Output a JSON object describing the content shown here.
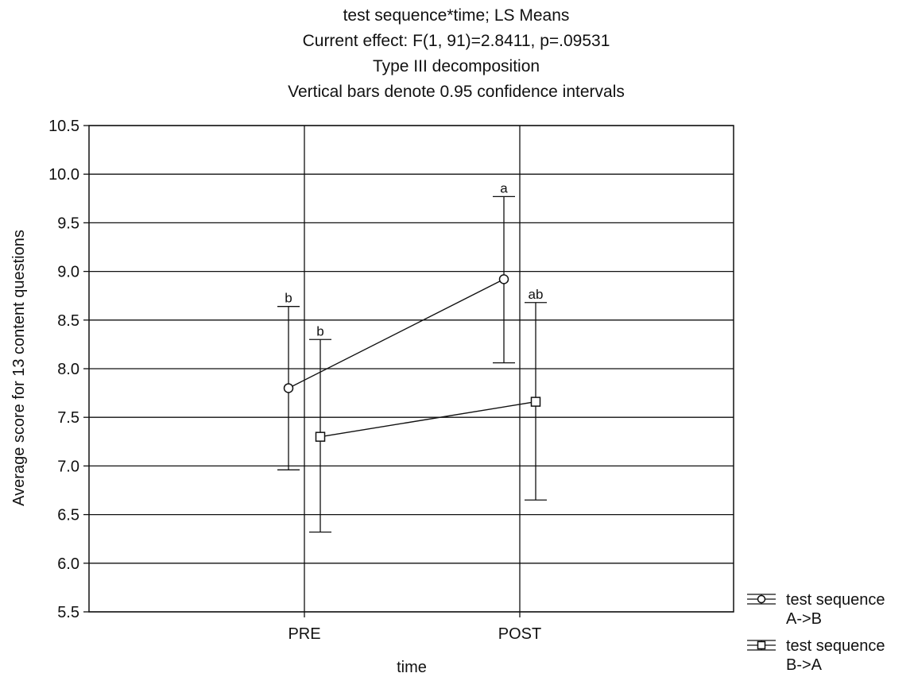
{
  "chart_data": {
    "type": "line",
    "title_lines": [
      "test sequence*time; LS Means",
      "Current effect: F(1, 91)=2.8411, p=.09531",
      "Type III decomposition",
      "Vertical bars denote 0.95 confidence intervals"
    ],
    "xlabel": "time",
    "ylabel": "Average score for 13 content questions",
    "categories": [
      "PRE",
      "POST"
    ],
    "ylim": [
      5.5,
      10.5
    ],
    "yticks": [
      "10.5",
      "10.0",
      "9.5",
      "9.0",
      "8.5",
      "8.0",
      "7.5",
      "7.0",
      "6.5",
      "6.0",
      "5.5"
    ],
    "grid": true,
    "legend_position": "bottom-right",
    "series": [
      {
        "name_lines": [
          "test sequence",
          "A->B"
        ],
        "marker": "circle",
        "values": [
          7.8,
          8.92
        ],
        "ci_low": [
          6.96,
          8.06
        ],
        "ci_high": [
          8.64,
          9.77
        ],
        "labels": [
          "b",
          "a"
        ]
      },
      {
        "name_lines": [
          "test sequence",
          "B->A"
        ],
        "marker": "square",
        "values": [
          7.3,
          7.66
        ],
        "ci_low": [
          6.32,
          6.65
        ],
        "ci_high": [
          8.3,
          8.68
        ],
        "labels": [
          "b",
          "ab"
        ]
      }
    ]
  }
}
